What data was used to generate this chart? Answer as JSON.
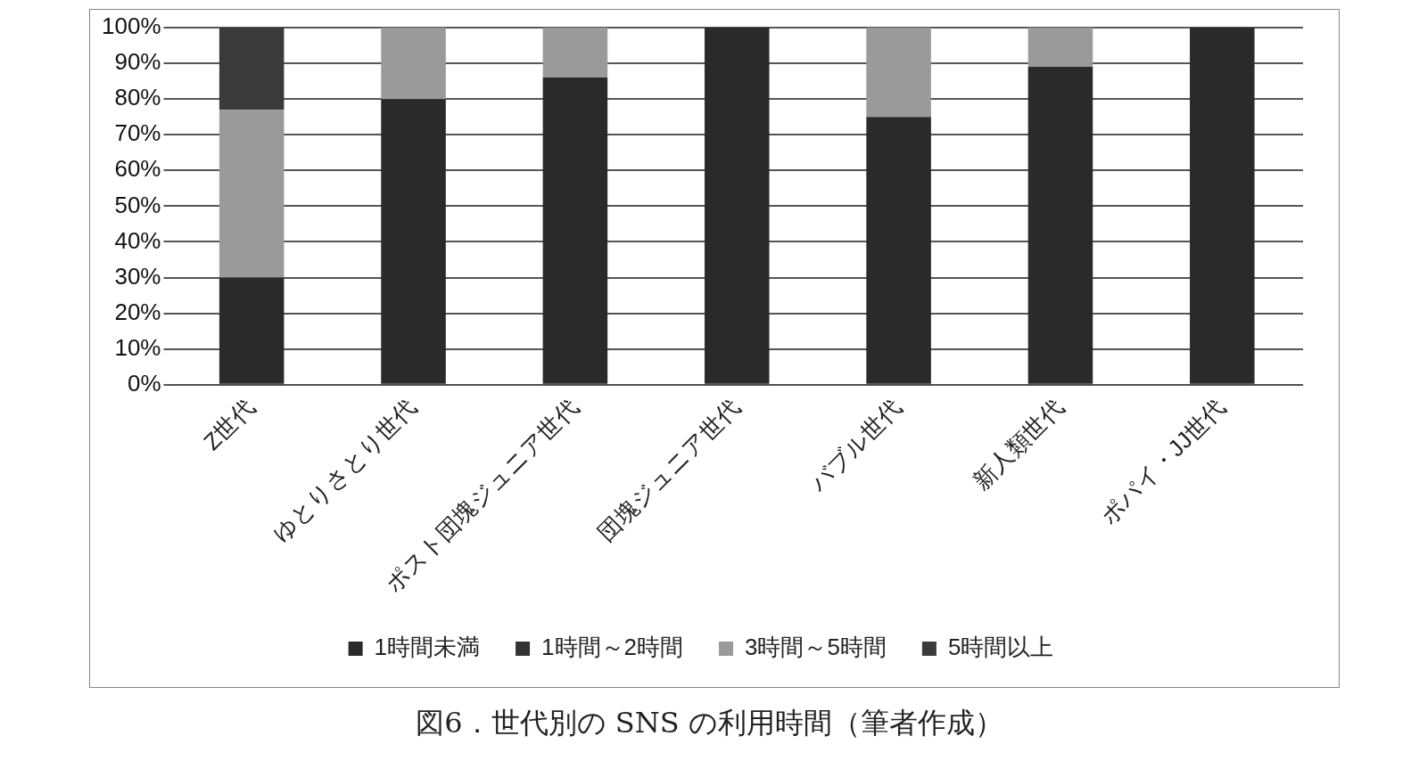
{
  "chart_data": {
    "type": "bar",
    "title": "図6．世代別の SNS の利用時間（筆者作成）",
    "categories": [
      "Z世代",
      "ゆとりさとり世代",
      "ポスト団塊ジュニア世代",
      "団塊ジュニア世代",
      "バブル世代",
      "新人類世代",
      "ポパイ・JJ世代"
    ],
    "series": [
      {
        "name": "1時間未満",
        "color": "#2a2a2a",
        "values": [
          30,
          80,
          86,
          100,
          75,
          89,
          100
        ]
      },
      {
        "name": "1時間～2時間",
        "color": "#333333",
        "values": [
          0,
          0,
          0,
          0,
          0,
          0,
          0
        ]
      },
      {
        "name": "3時間～5時間",
        "color": "#9a9a9a",
        "values": [
          47,
          20,
          14,
          0,
          25,
          11,
          0
        ]
      },
      {
        "name": "5時間以上",
        "color": "#3a3a3a",
        "values": [
          23,
          0,
          0,
          0,
          0,
          0,
          0
        ]
      }
    ],
    "stacked": true,
    "ylim": [
      0,
      100
    ],
    "yticks": [
      {
        "value": 0,
        "label": "0%"
      },
      {
        "value": 10,
        "label": "10%"
      },
      {
        "value": 20,
        "label": "20%"
      },
      {
        "value": 30,
        "label": "30%"
      },
      {
        "value": 40,
        "label": "40%"
      },
      {
        "value": 50,
        "label": "50%"
      },
      {
        "value": 60,
        "label": "60%"
      },
      {
        "value": 70,
        "label": "70%"
      },
      {
        "value": 80,
        "label": "80%"
      },
      {
        "value": 90,
        "label": "90%"
      },
      {
        "value": 100,
        "label": "100%"
      }
    ],
    "grid": "y",
    "legend": "bottom"
  }
}
